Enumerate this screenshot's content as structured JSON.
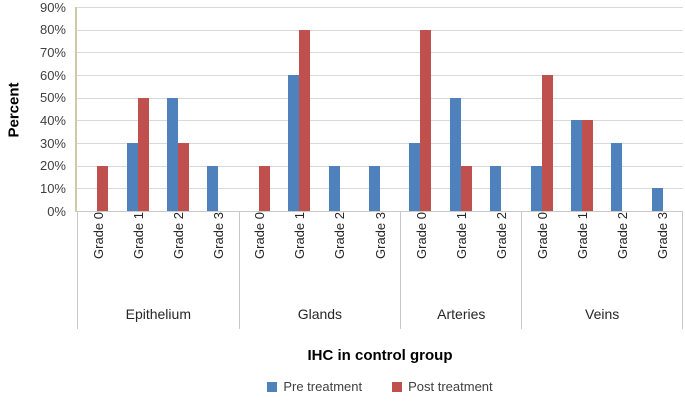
{
  "chart_data": {
    "type": "bar",
    "title": "",
    "xlabel": "IHC in control group",
    "ylabel": "Percent",
    "ylim": [
      0,
      90
    ],
    "ytick_step": 10,
    "yticks": [
      "0%",
      "10%",
      "20%",
      "30%",
      "40%",
      "50%",
      "60%",
      "70%",
      "80%",
      "90%"
    ],
    "grid": true,
    "legend_position": "bottom",
    "series_meta": [
      {
        "name": "Pre treatment",
        "color": "#4F81BD",
        "key": "pre"
      },
      {
        "name": "Post treatment",
        "color": "#C0504D",
        "key": "post"
      }
    ],
    "groups": [
      {
        "category": "Epithelium",
        "ticks": [
          "Grade 0",
          "Grade 1",
          "Grade 2",
          "Grade 3"
        ],
        "pre": [
          0,
          30,
          50,
          20
        ],
        "post": [
          20,
          50,
          30,
          0
        ]
      },
      {
        "category": "Glands",
        "ticks": [
          "Grade 0",
          "Grade 1",
          "Grade 2",
          "Grade 3"
        ],
        "pre": [
          0,
          60,
          20,
          20
        ],
        "post": [
          20,
          80,
          0,
          0
        ]
      },
      {
        "category": "Arteries",
        "ticks": [
          "Grade 0",
          "Grade 1",
          "Grade 2"
        ],
        "pre": [
          30,
          50,
          20
        ],
        "post": [
          80,
          20,
          0
        ]
      },
      {
        "category": "Veins",
        "ticks": [
          "Grade 0",
          "Grade 1",
          "Grade 2",
          "Grade 3"
        ],
        "pre": [
          20,
          40,
          30,
          10
        ],
        "post": [
          60,
          40,
          0,
          0
        ]
      }
    ],
    "style_colors": {
      "gridline": "#D9D9D9",
      "vertical_axis_line": "#CFC9A4",
      "category_border": "#C9C9C9"
    }
  }
}
